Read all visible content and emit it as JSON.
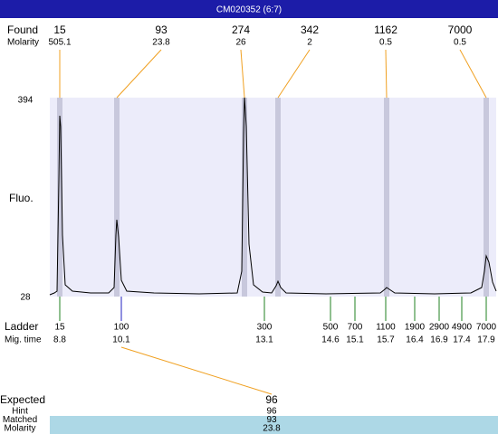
{
  "header": {
    "title": "CM020352 (6:7)"
  },
  "found": {
    "label": "Found",
    "molarity_label": "Molarity",
    "peaks": [
      {
        "size": 15,
        "molarity": 505.1
      },
      {
        "size": 93,
        "molarity": 23.8
      },
      {
        "size": 274,
        "molarity": 26
      },
      {
        "size": 342,
        "molarity": 2
      },
      {
        "size": 1162,
        "molarity": 0.5
      },
      {
        "size": 7000,
        "molarity": 0.5
      }
    ]
  },
  "axis": {
    "label": "Fluo.",
    "top": 394,
    "bottom": 28
  },
  "ladder": {
    "label": "Ladder",
    "time_label": "Mig. time",
    "items": [
      {
        "size": 15,
        "time": 8.8
      },
      {
        "size": 100,
        "time": 10.1
      },
      {
        "size": 300,
        "time": 13.1
      },
      {
        "size": 500,
        "time": 14.6
      },
      {
        "size": 700,
        "time": 15.1
      },
      {
        "size": 1100,
        "time": 15.7
      },
      {
        "size": 1900,
        "time": 16.4
      },
      {
        "size": 2900,
        "time": 16.9
      },
      {
        "size": 4900,
        "time": 17.4
      },
      {
        "size": 7000,
        "time": 17.9
      }
    ]
  },
  "expected": {
    "label": "Expected",
    "value": 96,
    "rows": [
      {
        "label": "Hint",
        "value": 96
      },
      {
        "label": "Matched",
        "value": 93
      },
      {
        "label": "Molarity",
        "value": 23.8
      }
    ]
  }
}
